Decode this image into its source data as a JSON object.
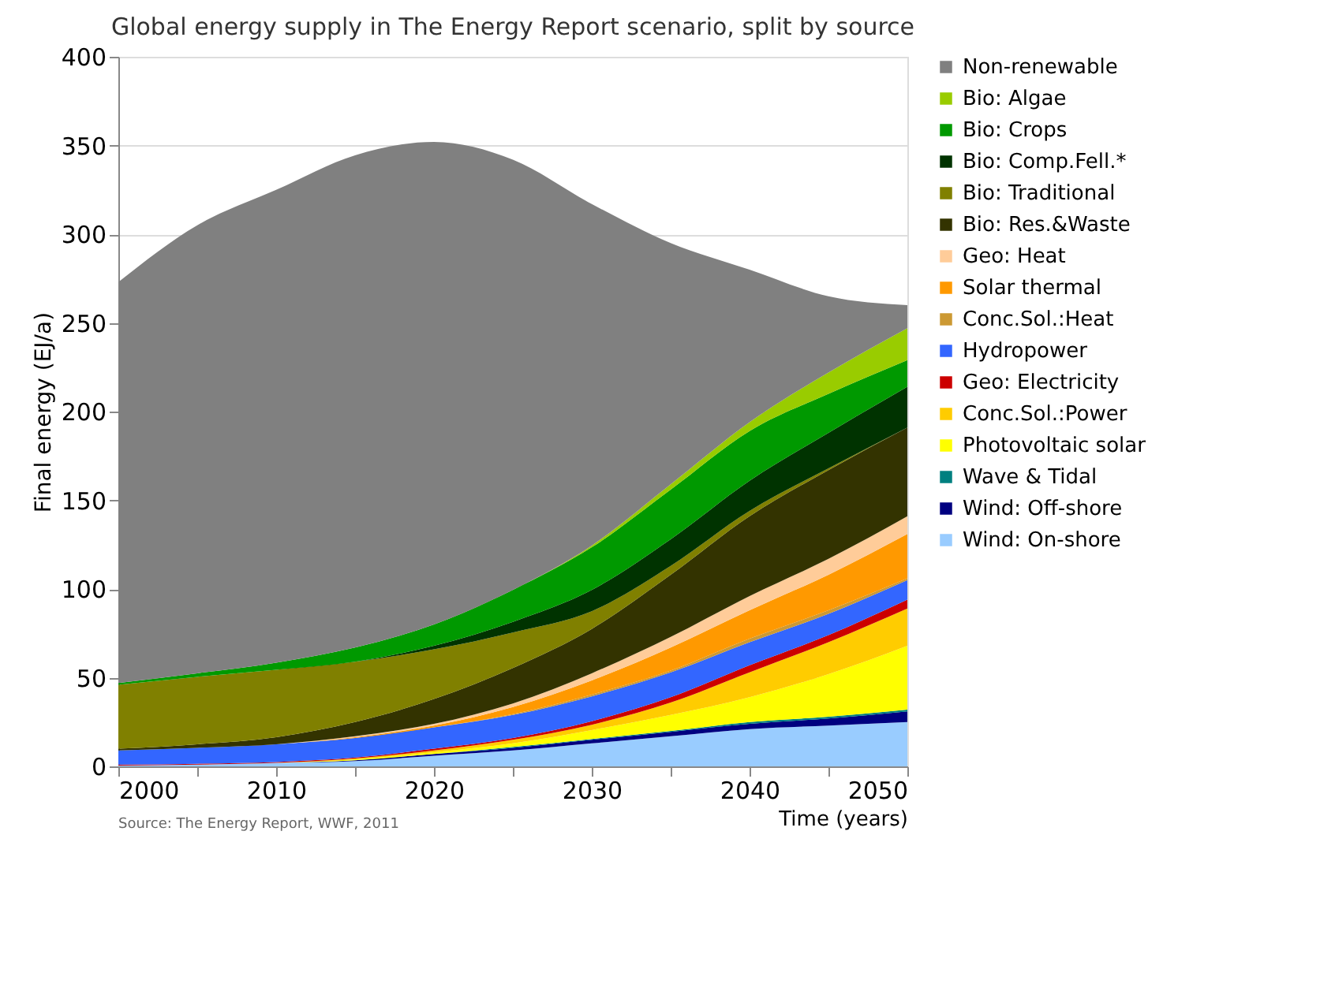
{
  "chart_data": {
    "type": "area",
    "stacked": true,
    "title": "Global energy supply in The Energy Report scenario, split by source",
    "xlabel": "Time (years)",
    "ylabel": "Final energy (EJ/a)",
    "x": [
      2000,
      2005,
      2010,
      2015,
      2020,
      2025,
      2030,
      2035,
      2040,
      2045,
      2050
    ],
    "xlim": [
      2000,
      2050
    ],
    "xticks": [
      2000,
      {
        "value": 2005,
        "label": null
      },
      2010,
      {
        "value": 2015,
        "label": null
      },
      2020,
      {
        "value": 2025,
        "label": null
      },
      2030,
      {
        "value": 2035,
        "label": null
      },
      2040,
      {
        "value": 2045,
        "label": null
      },
      2050
    ],
    "ylim": [
      0,
      400
    ],
    "yticks": [
      0,
      50,
      100,
      150,
      200,
      250,
      300,
      350,
      400
    ],
    "grid": "y",
    "legend": "right",
    "annotations": [
      "Source: The Energy Report, WWF, 2011"
    ],
    "series": [
      {
        "name": "Wind: On-shore",
        "color": "#99ccff",
        "values": [
          0.5,
          1,
          2,
          3,
          6,
          9,
          13,
          17,
          21,
          23,
          25
        ]
      },
      {
        "name": "Wind: Off-shore",
        "color": "#000080",
        "values": [
          0,
          0,
          0,
          0.5,
          1,
          1.5,
          2,
          2.5,
          3,
          4,
          6
        ]
      },
      {
        "name": "Wave & Tidal",
        "color": "#008080",
        "values": [
          0,
          0,
          0,
          0,
          0,
          0.5,
          0.5,
          0.5,
          1,
          1,
          1
        ]
      },
      {
        "name": "Photovoltaic solar",
        "color": "#ffff00",
        "values": [
          0,
          0,
          0,
          0.5,
          1,
          2,
          5,
          9,
          14,
          24,
          36
        ]
      },
      {
        "name": "Conc.Sol.:Power",
        "color": "#ffcc00",
        "values": [
          0,
          0,
          0,
          0.5,
          1,
          2,
          3,
          7,
          14,
          18,
          21
        ]
      },
      {
        "name": "Geo: Electricity",
        "color": "#cc0000",
        "values": [
          0.5,
          0.5,
          0.5,
          0.5,
          1,
          1,
          2,
          3,
          4,
          4,
          5
        ]
      },
      {
        "name": "Hydropower",
        "color": "#3366ff",
        "values": [
          8,
          9,
          10,
          11,
          12,
          13,
          14,
          14,
          13,
          12,
          11
        ]
      },
      {
        "name": "Conc.Sol.:Heat",
        "color": "#cc9933",
        "values": [
          0,
          0,
          0,
          0,
          0,
          0.5,
          1,
          1,
          2,
          2,
          1
        ]
      },
      {
        "name": "Solar thermal",
        "color": "#ff9900",
        "values": [
          0,
          0,
          0,
          0.5,
          1,
          4,
          8,
          13,
          16,
          20,
          25
        ]
      },
      {
        "name": "Geo: Heat",
        "color": "#ffcc99",
        "values": [
          0,
          0,
          0,
          0.5,
          1,
          2,
          4,
          6,
          8,
          9,
          10
        ]
      },
      {
        "name": "Bio: Res.&Waste",
        "color": "#333300",
        "values": [
          1,
          2,
          4,
          8,
          14,
          20,
          25,
          35,
          45,
          50,
          50
        ]
      },
      {
        "name": "Bio: Traditional",
        "color": "#808000",
        "values": [
          36,
          38,
          38,
          34,
          28,
          20,
          10,
          5,
          3,
          1,
          0
        ]
      },
      {
        "name": "Bio: Comp.Fell.*",
        "color": "#003300",
        "values": [
          0,
          0,
          0,
          0,
          2,
          6,
          12,
          15,
          17,
          20,
          23
        ]
      },
      {
        "name": "Bio: Crops",
        "color": "#009900",
        "values": [
          1,
          2,
          4,
          8,
          12,
          18,
          24,
          28,
          28,
          22,
          15
        ]
      },
      {
        "name": "Bio: Algae",
        "color": "#99cc00",
        "values": [
          0,
          0,
          0,
          0,
          0,
          0,
          1,
          3,
          5,
          12,
          18
        ]
      },
      {
        "name": "Non-renewable",
        "color": "#808080",
        "values": [
          226,
          252.5,
          266.5,
          277.5,
          272,
          242.5,
          192.5,
          136,
          86,
          43,
          13
        ]
      }
    ]
  }
}
